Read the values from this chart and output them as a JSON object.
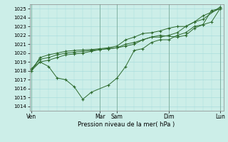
{
  "title": "Pression niveau de la mer( hPa )",
  "background_color": "#cceee8",
  "grid_color": "#aadddd",
  "line_color": "#2d6a2d",
  "marker": "+",
  "ylim": [
    1013.5,
    1025.5
  ],
  "yticks": [
    1014,
    1015,
    1016,
    1017,
    1018,
    1019,
    1020,
    1021,
    1022,
    1023,
    1024,
    1025
  ],
  "xtick_labels": [
    "Ven",
    "",
    "Mar",
    "Sam",
    "",
    "",
    "Dim",
    "",
    "",
    "Lun"
  ],
  "vline_positions": [
    0,
    4,
    5,
    8,
    11
  ],
  "vline_labels": [
    "Ven",
    "Mar",
    "Sam",
    "Dim",
    "Lun"
  ],
  "series1_x": [
    0,
    0.5,
    1.0,
    1.5,
    2.0,
    2.5,
    3.0,
    3.5,
    4.5,
    5.0,
    5.5,
    6.0,
    6.5,
    7.0,
    7.5,
    8.0,
    8.5,
    9.0,
    9.5,
    10.0,
    10.5,
    11.0
  ],
  "series1_y": [
    1018.0,
    1019.0,
    1018.5,
    1017.2,
    1017.0,
    1016.2,
    1014.8,
    1015.6,
    1016.4,
    1017.2,
    1018.5,
    1020.3,
    1020.5,
    1021.2,
    1021.5,
    1021.5,
    1022.0,
    1022.3,
    1023.0,
    1023.2,
    1024.8,
    1025.0
  ],
  "series2_x": [
    0,
    0.5,
    1.0,
    1.5,
    2.0,
    2.5,
    3.0,
    3.5,
    4.0,
    4.5,
    5.0,
    5.5,
    6.0,
    6.5,
    7.0,
    7.5,
    8.5,
    9.0,
    9.5,
    10.0,
    10.5,
    11.0
  ],
  "series2_y": [
    1018.2,
    1019.3,
    1019.5,
    1019.8,
    1020.0,
    1020.1,
    1020.2,
    1020.3,
    1020.4,
    1020.5,
    1020.6,
    1020.8,
    1021.0,
    1021.5,
    1021.8,
    1022.0,
    1021.8,
    1022.0,
    1022.8,
    1023.2,
    1023.5,
    1025.0
  ],
  "series3_x": [
    0,
    0.5,
    1.0,
    1.5,
    2.0,
    2.5,
    3.0,
    3.5,
    4.0,
    4.5,
    5.0,
    5.5,
    6.0,
    6.5,
    7.0,
    7.5,
    8.0,
    8.5,
    9.0,
    9.5,
    10.0,
    11.0
  ],
  "series3_y": [
    1018.0,
    1019.5,
    1019.8,
    1020.0,
    1020.2,
    1020.3,
    1020.35,
    1020.4,
    1020.5,
    1020.6,
    1020.8,
    1021.5,
    1021.8,
    1022.2,
    1022.3,
    1022.5,
    1022.8,
    1023.0,
    1023.0,
    1023.5,
    1023.8,
    1025.2
  ],
  "series4_x": [
    0,
    0.5,
    1.0,
    1.5,
    2.0,
    2.5,
    3.0,
    3.5,
    4.0,
    4.5,
    5.0,
    5.5,
    6.0,
    6.5,
    7.0,
    7.5,
    8.0,
    8.5,
    9.0,
    9.5,
    10.0,
    11.0
  ],
  "series4_y": [
    1018.2,
    1019.0,
    1019.2,
    1019.5,
    1019.8,
    1019.9,
    1020.0,
    1020.2,
    1020.4,
    1020.5,
    1020.6,
    1021.0,
    1021.2,
    1021.5,
    1021.8,
    1021.8,
    1022.0,
    1022.3,
    1023.0,
    1023.5,
    1024.2,
    1025.0
  ],
  "xlim": [
    -0.1,
    11.2
  ],
  "xlabel_fontsize": 6.0,
  "ytick_fontsize": 5.0,
  "xtick_fontsize": 5.5,
  "linewidth": 0.7,
  "markersize": 2.5
}
